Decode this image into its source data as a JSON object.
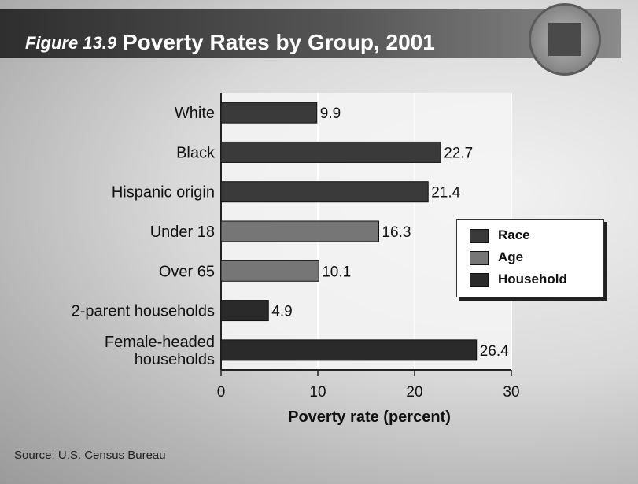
{
  "figure": {
    "number": "Figure 13.9",
    "title": "Poverty Rates by Group, 2001",
    "source": "Source: U.S. Census Bureau"
  },
  "colors": {
    "race": "#3a3a3a",
    "age": "#767676",
    "household": "#2a2a2a"
  },
  "legend": {
    "race": "Race",
    "age": "Age",
    "household": "Household"
  },
  "chart_data": {
    "type": "bar",
    "orientation": "horizontal",
    "xlabel": "Poverty rate (percent)",
    "xlim": [
      0,
      30
    ],
    "xticks": [
      0,
      10,
      20,
      30
    ],
    "grid": true,
    "legend_position": "right",
    "categories": [
      {
        "label": [
          "White"
        ],
        "value": 9.9,
        "group": "race"
      },
      {
        "label": [
          "Black"
        ],
        "value": 22.7,
        "group": "race"
      },
      {
        "label": [
          "Hispanic origin"
        ],
        "value": 21.4,
        "group": "race"
      },
      {
        "label": [
          "Under 18"
        ],
        "value": 16.3,
        "group": "age"
      },
      {
        "label": [
          "Over 65"
        ],
        "value": 10.1,
        "group": "age"
      },
      {
        "label": [
          "2-parent households"
        ],
        "value": 4.9,
        "group": "household"
      },
      {
        "label": [
          "Female-headed",
          "households"
        ],
        "value": 26.4,
        "group": "household"
      }
    ]
  }
}
